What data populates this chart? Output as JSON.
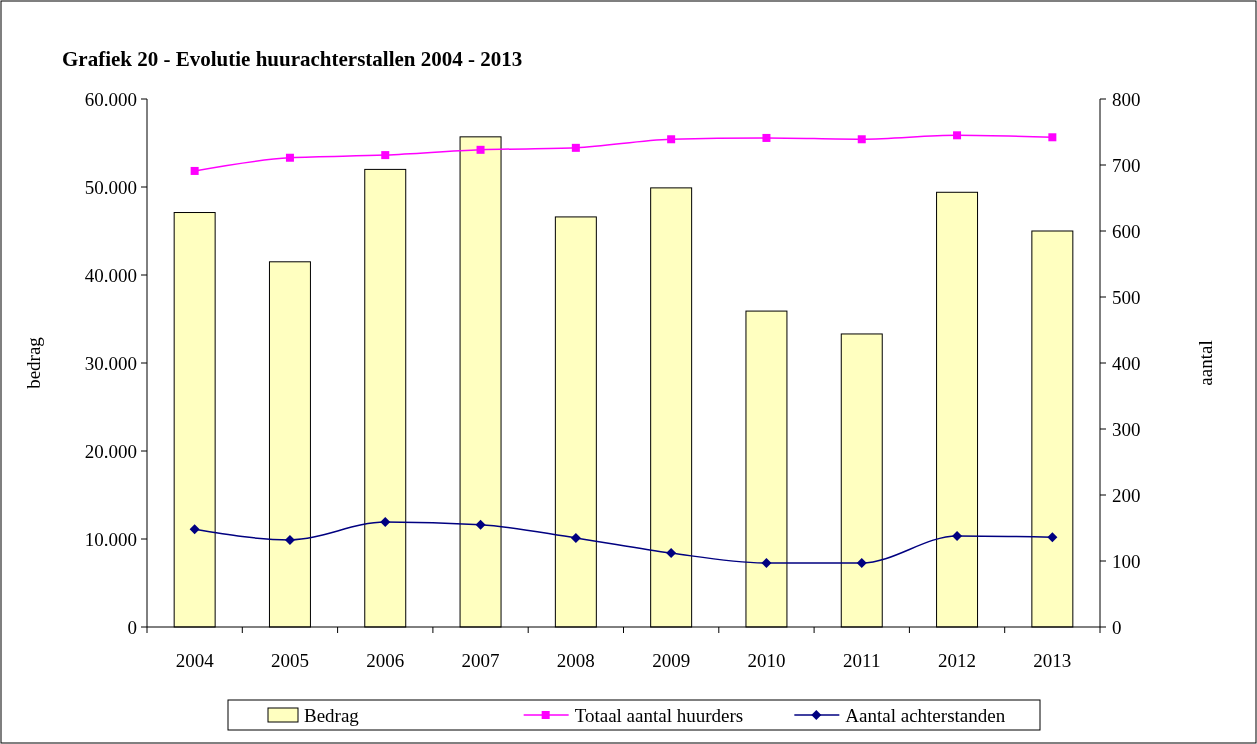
{
  "chart_data": {
    "type": "bar",
    "title": "Grafiek 20 - Evolutie huurachterstallen 2004 - 2013",
    "ylabel": "bedrag",
    "y2label": "aantal",
    "categories": [
      "2004",
      "2005",
      "2006",
      "2007",
      "2008",
      "2009",
      "2010",
      "2011",
      "2012",
      "2013"
    ],
    "series": [
      {
        "name": "Bedrag",
        "color": "#ffffc0",
        "values": [
          47100,
          41500,
          52000,
          55700,
          46600,
          49900,
          35900,
          33300,
          49400,
          45000
        ]
      },
      {
        "name": "Totaal aantal huurders",
        "type": "line",
        "axis": "y2",
        "color": "#ff00ff",
        "marker": "square",
        "values": [
          691,
          711,
          715,
          723,
          726,
          739,
          741,
          739,
          745,
          742
        ]
      },
      {
        "name": "Aantal achterstanden",
        "type": "line",
        "axis": "y2",
        "color": "#000080",
        "marker": "diamond",
        "values": [
          148,
          132,
          159,
          155,
          135,
          112,
          97,
          97,
          138,
          136
        ]
      }
    ],
    "ylim": [
      0,
      60000
    ],
    "yticks": [
      {
        "value": 0,
        "label": "0"
      },
      {
        "value": 10000,
        "label": "10.000"
      },
      {
        "value": 20000,
        "label": "20.000"
      },
      {
        "value": 30000,
        "label": "30.000"
      },
      {
        "value": 40000,
        "label": "40.000"
      },
      {
        "value": 50000,
        "label": "50.000"
      },
      {
        "value": 60000,
        "label": "60.000"
      }
    ],
    "y2lim": [
      0,
      800
    ],
    "y2ticks": [
      0,
      100,
      200,
      300,
      400,
      500,
      600,
      700,
      800
    ],
    "grid": false,
    "legend": "bottom",
    "line_style": "solid"
  }
}
